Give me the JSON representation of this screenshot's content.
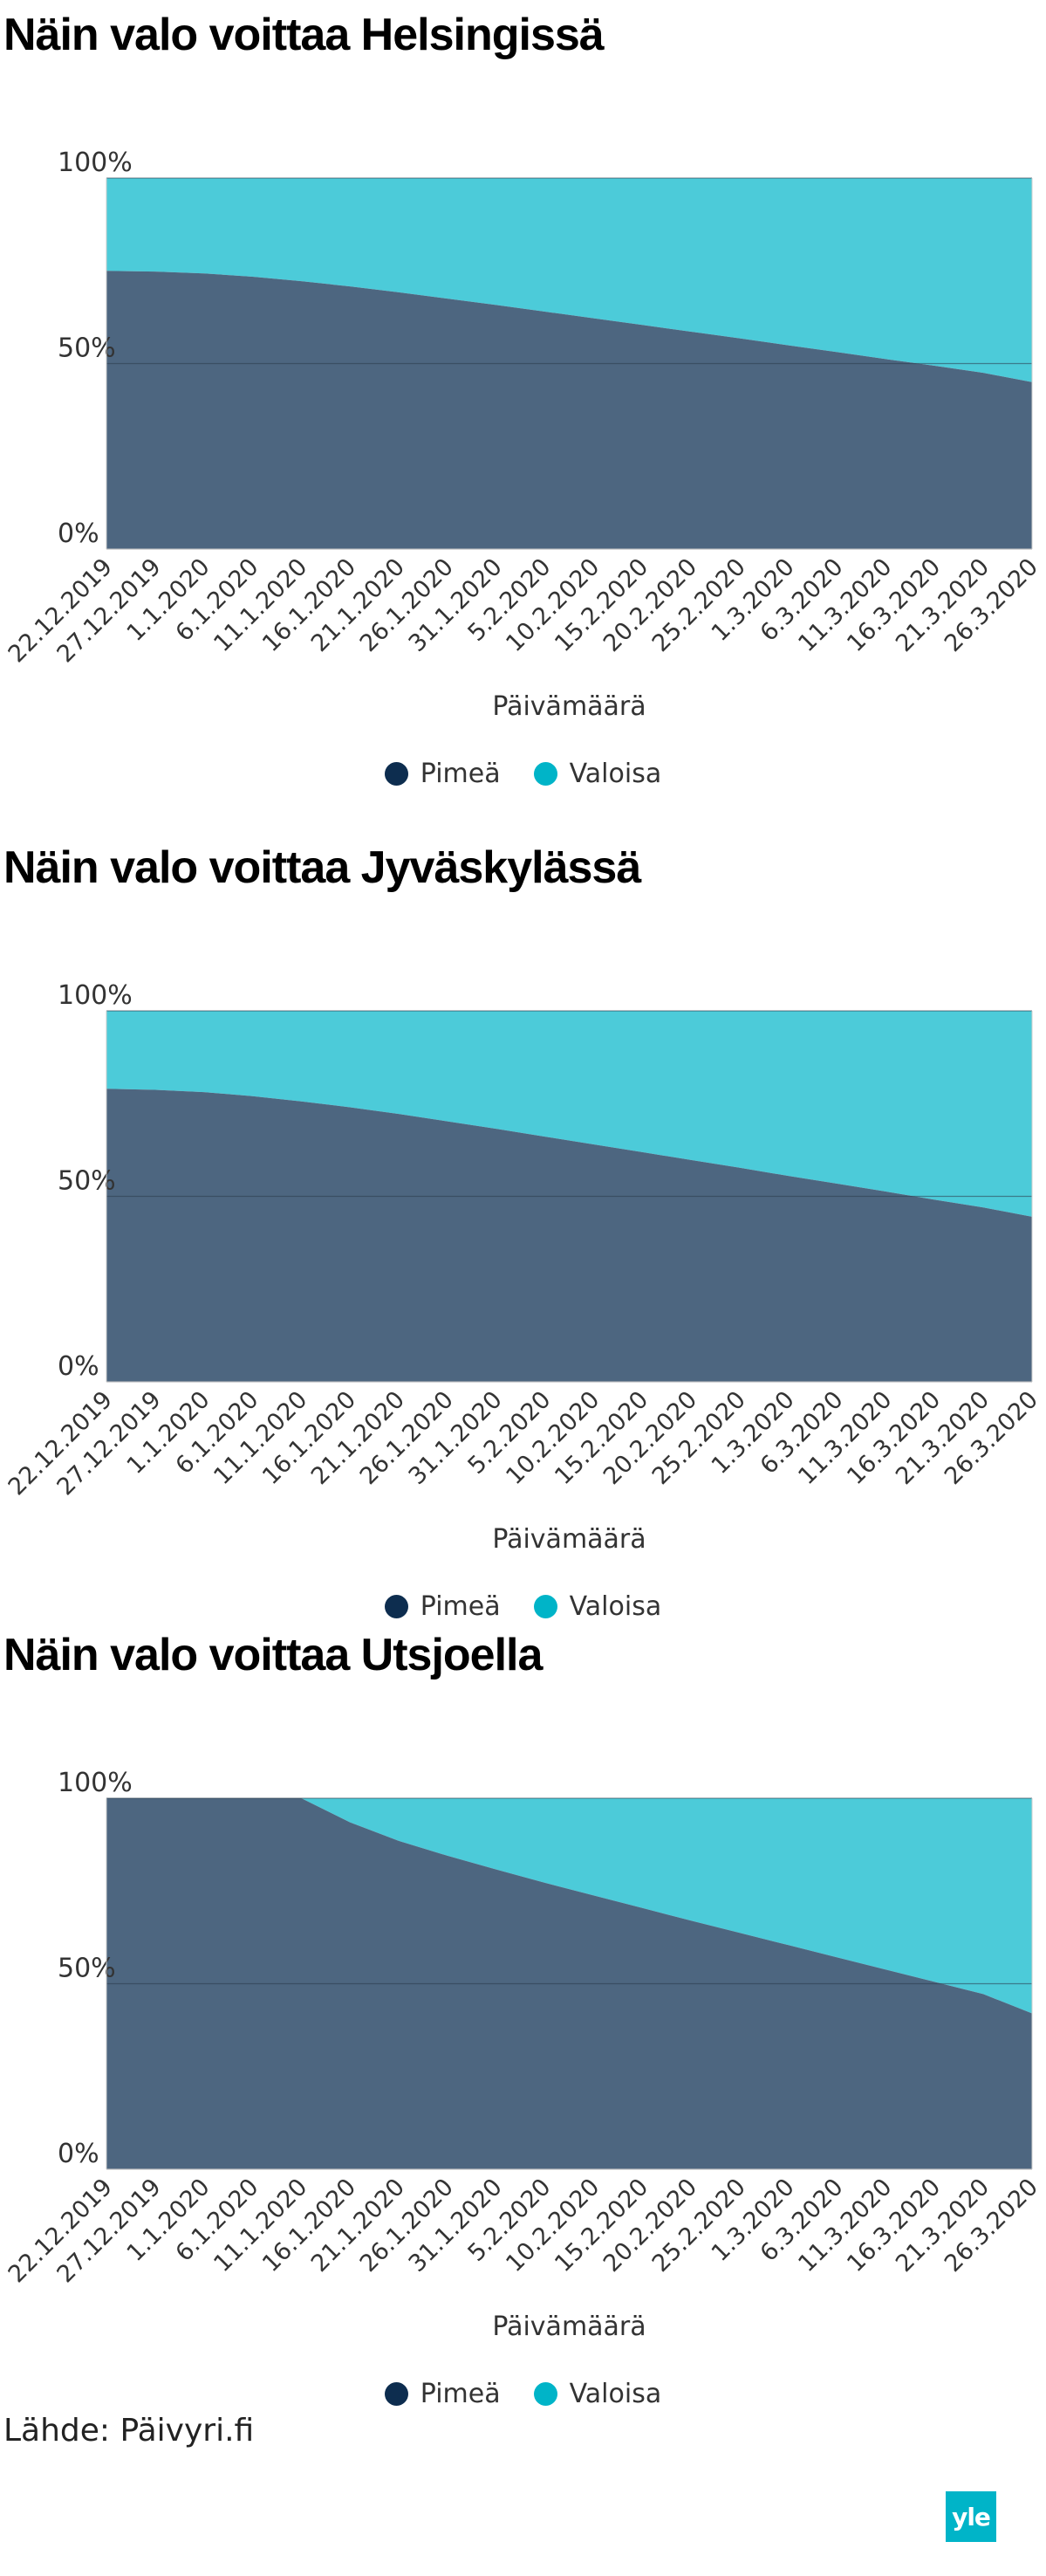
{
  "chart_data": [
    {
      "type": "area",
      "title": "Näin valo voittaa Helsingissä",
      "xlabel": "Päivämäärä",
      "ylabel": "",
      "stacked": true,
      "y_tick_labels": [
        "100%",
        "50%",
        "0%"
      ],
      "ylim": [
        0,
        100
      ],
      "grid": true,
      "legend_position": "bottom-center",
      "x": [
        "22.12.2019",
        "27.12.2019",
        "1.1.2020",
        "6.1.2020",
        "11.1.2020",
        "16.1.2020",
        "21.1.2020",
        "26.1.2020",
        "31.1.2020",
        "5.2.2020",
        "10.2.2020",
        "15.2.2020",
        "20.2.2020",
        "25.2.2020",
        "1.3.2020",
        "6.3.2020",
        "11.3.2020",
        "16.3.2020",
        "21.3.2020",
        "26.3.2020"
      ],
      "series": [
        {
          "name": "Pimeä",
          "color": "#4d6680",
          "values": [
            75.0,
            74.8,
            74.3,
            73.4,
            72.2,
            70.8,
            69.2,
            67.5,
            65.8,
            64.0,
            62.2,
            60.4,
            58.6,
            56.8,
            54.9,
            53.1,
            51.2,
            49.4,
            47.5,
            45.0
          ]
        },
        {
          "name": "Valoisa",
          "color": "#4ccbd9",
          "values": [
            25.0,
            25.2,
            25.7,
            26.6,
            27.8,
            29.2,
            30.8,
            32.5,
            34.2,
            36.0,
            37.8,
            39.6,
            41.4,
            43.2,
            45.1,
            46.9,
            48.8,
            50.6,
            52.5,
            55.0
          ]
        }
      ]
    },
    {
      "type": "area",
      "title": "Näin valo voittaa Jyväskylässä",
      "xlabel": "Päivämäärä",
      "ylabel": "",
      "stacked": true,
      "y_tick_labels": [
        "100%",
        "50%",
        "0%"
      ],
      "ylim": [
        0,
        100
      ],
      "grid": true,
      "legend_position": "bottom-center",
      "x": [
        "22.12.2019",
        "27.12.2019",
        "1.1.2020",
        "6.1.2020",
        "11.1.2020",
        "16.1.2020",
        "21.1.2020",
        "26.1.2020",
        "31.1.2020",
        "5.2.2020",
        "10.2.2020",
        "15.2.2020",
        "20.2.2020",
        "25.2.2020",
        "1.3.2020",
        "6.3.2020",
        "11.3.2020",
        "16.3.2020",
        "21.3.2020",
        "26.3.2020"
      ],
      "series": [
        {
          "name": "Pimeä",
          "color": "#4d6680",
          "values": [
            79.0,
            78.7,
            78.1,
            77.0,
            75.6,
            74.0,
            72.2,
            70.2,
            68.2,
            66.1,
            64.0,
            61.9,
            59.8,
            57.7,
            55.5,
            53.4,
            51.3,
            49.1,
            47.0,
            44.5
          ]
        },
        {
          "name": "Valoisa",
          "color": "#4ccbd9",
          "values": [
            21.0,
            21.3,
            21.9,
            23.0,
            24.4,
            26.0,
            27.8,
            29.8,
            31.8,
            33.9,
            36.0,
            38.1,
            40.2,
            42.3,
            44.5,
            46.6,
            48.7,
            50.9,
            53.0,
            55.5
          ]
        }
      ]
    },
    {
      "type": "area",
      "title": "Näin valo voittaa Utsjoella",
      "xlabel": "Päivämäärä",
      "ylabel": "",
      "stacked": true,
      "y_tick_labels": [
        "100%",
        "50%",
        "0%"
      ],
      "ylim": [
        0,
        100
      ],
      "grid": true,
      "legend_position": "bottom-center",
      "x": [
        "22.12.2019",
        "27.12.2019",
        "1.1.2020",
        "6.1.2020",
        "11.1.2020",
        "16.1.2020",
        "21.1.2020",
        "26.1.2020",
        "31.1.2020",
        "5.2.2020",
        "10.2.2020",
        "15.2.2020",
        "20.2.2020",
        "25.2.2020",
        "1.3.2020",
        "6.3.2020",
        "11.3.2020",
        "16.3.2020",
        "21.3.2020",
        "26.3.2020"
      ],
      "series": [
        {
          "name": "Pimeä",
          "color": "#4d6680",
          "values": [
            100.0,
            100.0,
            100.0,
            100.0,
            100.0,
            93.5,
            88.5,
            84.5,
            80.8,
            77.2,
            73.8,
            70.4,
            67.0,
            63.7,
            60.4,
            57.1,
            53.8,
            50.5,
            47.2,
            42.0
          ]
        },
        {
          "name": "Valoisa",
          "color": "#4ccbd9",
          "values": [
            0.0,
            0.0,
            0.0,
            0.0,
            0.0,
            6.5,
            11.5,
            15.5,
            19.2,
            22.8,
            26.2,
            29.6,
            33.0,
            36.3,
            39.6,
            42.9,
            46.2,
            49.5,
            52.8,
            58.0
          ]
        }
      ]
    }
  ],
  "legend": {
    "dark_label": "Pimeä",
    "light_label": "Valoisa",
    "dark_color": "#0d2d4f",
    "light_color": "#00b4c8"
  },
  "footer": {
    "source": "Lähde: Päivyri.fi",
    "logo_text": "yle"
  }
}
